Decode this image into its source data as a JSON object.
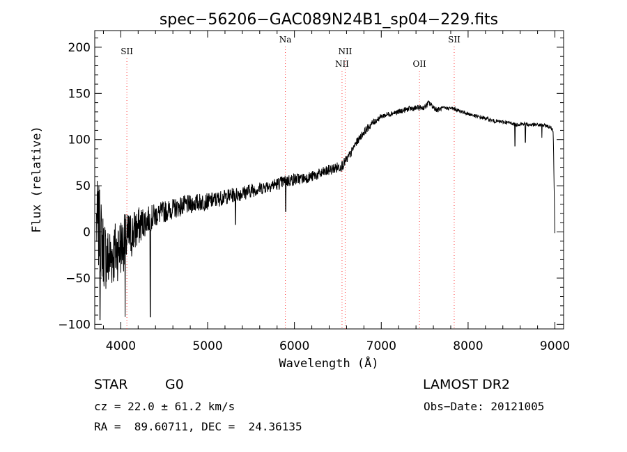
{
  "chart_data": {
    "type": "line",
    "title": "spec−56206−GAC089N24B1_sp04−229.fits",
    "xlabel": "Wavelength (Å)",
    "ylabel": "Flux (relative)",
    "xlim": [
      3700,
      9100
    ],
    "ylim": [
      -105,
      218
    ],
    "x_ticks": [
      4000,
      5000,
      6000,
      7000,
      8000,
      9000
    ],
    "y_ticks": [
      -100,
      -50,
      0,
      50,
      100,
      150,
      200
    ],
    "y_tick_labels": [
      "−100",
      "−50",
      "0",
      "50",
      "100",
      "150",
      "200"
    ],
    "grid": false,
    "series": [
      {
        "x": [
          3720,
          3760,
          3800,
          3850,
          3900,
          3950,
          4000,
          4050,
          4100,
          4150,
          4200,
          4250,
          4300,
          4350,
          4400,
          4450,
          4500,
          4600,
          4700,
          4800,
          4900,
          5000,
          5100,
          5200,
          5300,
          5400,
          5500,
          5600,
          5700,
          5800,
          5900,
          6000,
          6100,
          6200,
          6300,
          6400,
          6500,
          6550,
          6600,
          6650,
          6700,
          6800,
          6900,
          7000,
          7100,
          7200,
          7300,
          7400,
          7500,
          7550,
          7600,
          7650,
          7700,
          7800,
          7850,
          7900,
          8000,
          8100,
          8200,
          8300,
          8400,
          8500,
          8550,
          8600,
          8650,
          8700,
          8800,
          8900,
          8950,
          8980,
          9000
        ],
        "y": [
          10,
          0,
          -20,
          -30,
          -25,
          -20,
          -15,
          -10,
          -5,
          0,
          5,
          10,
          12,
          15,
          18,
          20,
          22,
          25,
          28,
          30,
          32,
          33,
          35,
          38,
          40,
          42,
          45,
          47,
          50,
          52,
          55,
          57,
          58,
          60,
          63,
          67,
          70,
          72,
          78,
          85,
          95,
          108,
          118,
          125,
          128,
          130,
          133,
          134,
          135,
          140,
          135,
          132,
          134,
          134,
          133,
          131,
          128,
          125,
          123,
          120,
          119,
          118,
          116,
          117,
          117,
          116,
          116,
          115,
          113,
          110,
          0
        ],
        "noise_amp": [
          50,
          45,
          40,
          38,
          36,
          35,
          33,
          30,
          28,
          25,
          22,
          18,
          15,
          14,
          13,
          12,
          12,
          11,
          11,
          10,
          10,
          9,
          9,
          8,
          8,
          8,
          8,
          7,
          7,
          7,
          7,
          7,
          6,
          6,
          6,
          6,
          6,
          6,
          5,
          5,
          4,
          4,
          4,
          3,
          3,
          3,
          3,
          3,
          3,
          3,
          3,
          3,
          2,
          2,
          2,
          2,
          2,
          2,
          2,
          2,
          2,
          2,
          2,
          2,
          2,
          2,
          2,
          2,
          2,
          2,
          2
        ],
        "absorption": [
          {
            "x": 3760,
            "y": -95
          },
          {
            "x": 4050,
            "y": -92
          },
          {
            "x": 4340,
            "y": -92
          },
          {
            "x": 5320,
            "y": 8
          },
          {
            "x": 5900,
            "y": 22
          },
          {
            "x": 8540,
            "y": 93
          },
          {
            "x": 8660,
            "y": 97
          },
          {
            "x": 8850,
            "y": 102
          }
        ]
      }
    ],
    "lines": [
      {
        "name": "SII",
        "x": 4070,
        "label_row": 1
      },
      {
        "name": "Na",
        "x": 5895,
        "label_row": 0
      },
      {
        "name": "NII",
        "x": 6548,
        "label_row": 2
      },
      {
        "name": "NII",
        "x": 6584,
        "label_row": 1
      },
      {
        "name": "OII",
        "x": 7440,
        "label_row": 2
      },
      {
        "name": "SII",
        "x": 7840,
        "label_row": 0
      }
    ]
  },
  "info": {
    "class": "STAR",
    "subclass": "G0",
    "survey": "LAMOST DR2",
    "cz": "cz = 22.0 ± 61.2 km/s",
    "obs_date": "Obs−Date: 20121005",
    "coords": "RA =  89.60711, DEC =  24.36135"
  }
}
